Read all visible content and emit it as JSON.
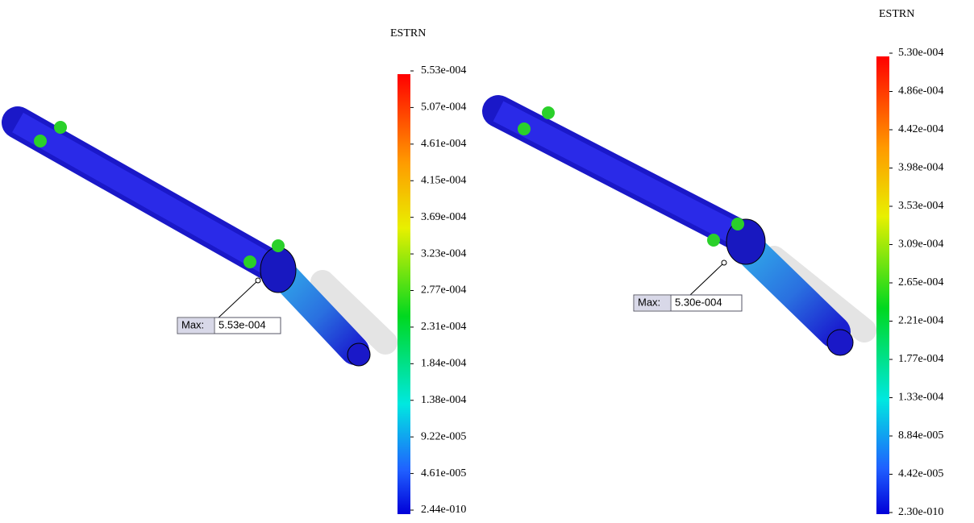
{
  "panels": [
    {
      "legend_title": "ESTRN",
      "legend_labels": [
        "5.53e-004",
        "5.07e-004",
        "4.61e-004",
        "4.15e-004",
        "3.69e-004",
        "3.23e-004",
        "2.77e-004",
        "2.31e-004",
        "1.84e-004",
        "1.38e-004",
        "9.22e-005",
        "4.61e-005",
        "2.44e-010"
      ],
      "max_label": "Max:",
      "max_value": "5.53e-004"
    },
    {
      "legend_title": "ESTRN",
      "legend_labels": [
        "5.30e-004",
        "4.86e-004",
        "4.42e-004",
        "3.98e-004",
        "3.53e-004",
        "3.09e-004",
        "2.65e-004",
        "2.21e-004",
        "1.77e-004",
        "1.33e-004",
        "8.84e-005",
        "4.42e-005",
        "2.30e-010"
      ],
      "max_label": "Max:",
      "max_value": "5.30e-004"
    }
  ]
}
